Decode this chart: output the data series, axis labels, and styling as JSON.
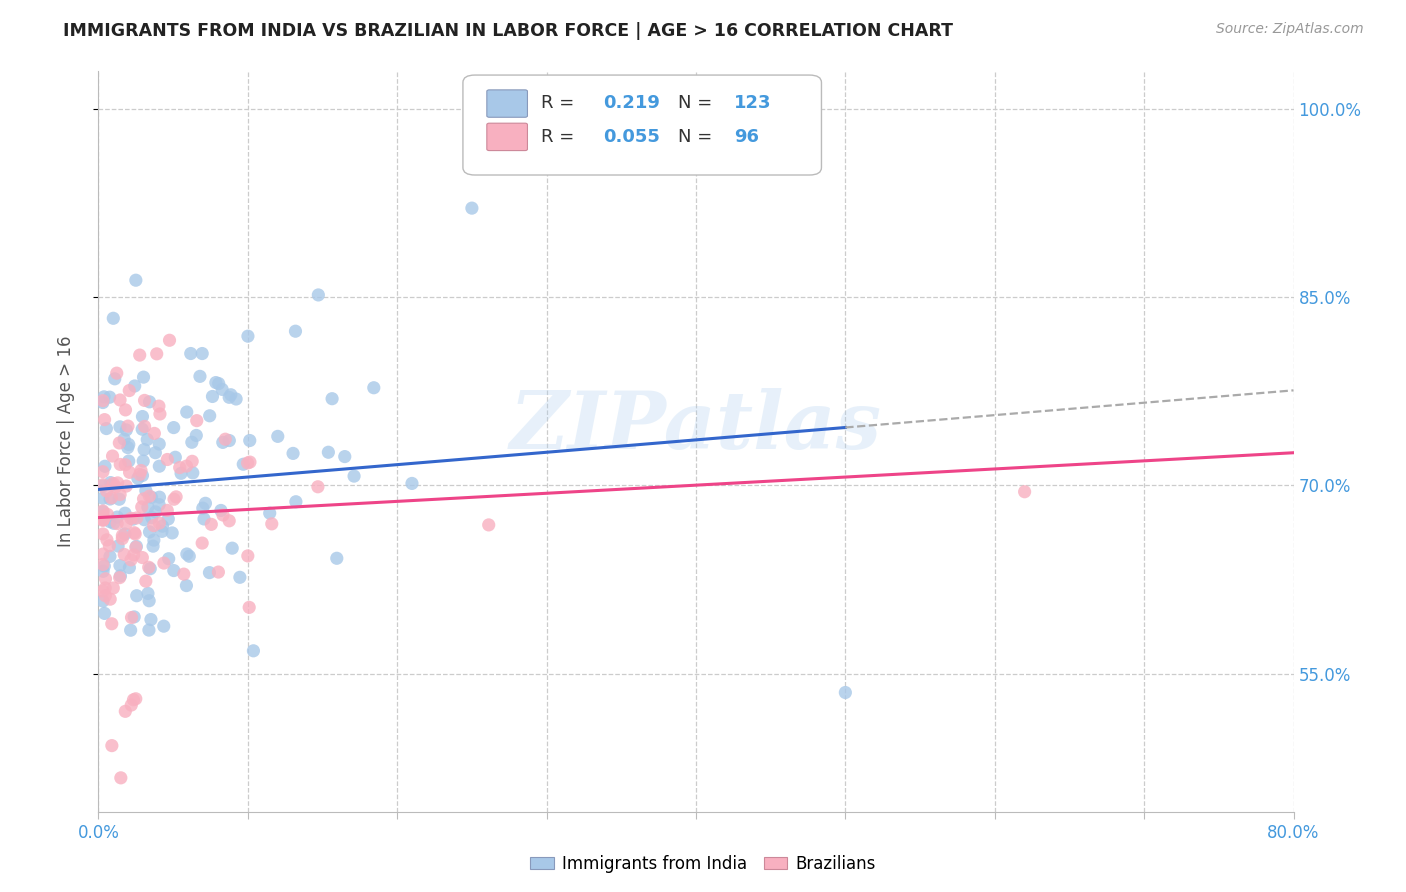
{
  "title": "IMMIGRANTS FROM INDIA VS BRAZILIAN IN LABOR FORCE | AGE > 16 CORRELATION CHART",
  "source": "Source: ZipAtlas.com",
  "ylabel": "In Labor Force | Age > 16",
  "x_min": 0.0,
  "x_max": 0.8,
  "y_min": 0.44,
  "y_max": 1.03,
  "x_ticks": [
    0.0,
    0.1,
    0.2,
    0.3,
    0.4,
    0.5,
    0.6,
    0.7,
    0.8
  ],
  "x_tick_labels": [
    "0.0%",
    "",
    "",
    "",
    "",
    "",
    "",
    "",
    "80.0%"
  ],
  "y_ticks": [
    0.55,
    0.7,
    0.85,
    1.0
  ],
  "y_tick_labels": [
    "55.0%",
    "70.0%",
    "85.0%",
    "100.0%"
  ],
  "legend_india_label": "Immigrants from India",
  "legend_brazil_label": "Brazilians",
  "india_R": "0.219",
  "india_N": "123",
  "brazil_R": "0.055",
  "brazil_N": "96",
  "india_color": "#a8c8e8",
  "brazil_color": "#f8b0c0",
  "india_line_color": "#3366cc",
  "brazil_line_color": "#ee4488",
  "watermark": "ZIPatlas",
  "background_color": "#ffffff",
  "grid_color": "#cccccc",
  "title_color": "#222222",
  "axis_label_color": "#555555",
  "tick_color": "#4499dd",
  "legend_text_color": "#333333"
}
